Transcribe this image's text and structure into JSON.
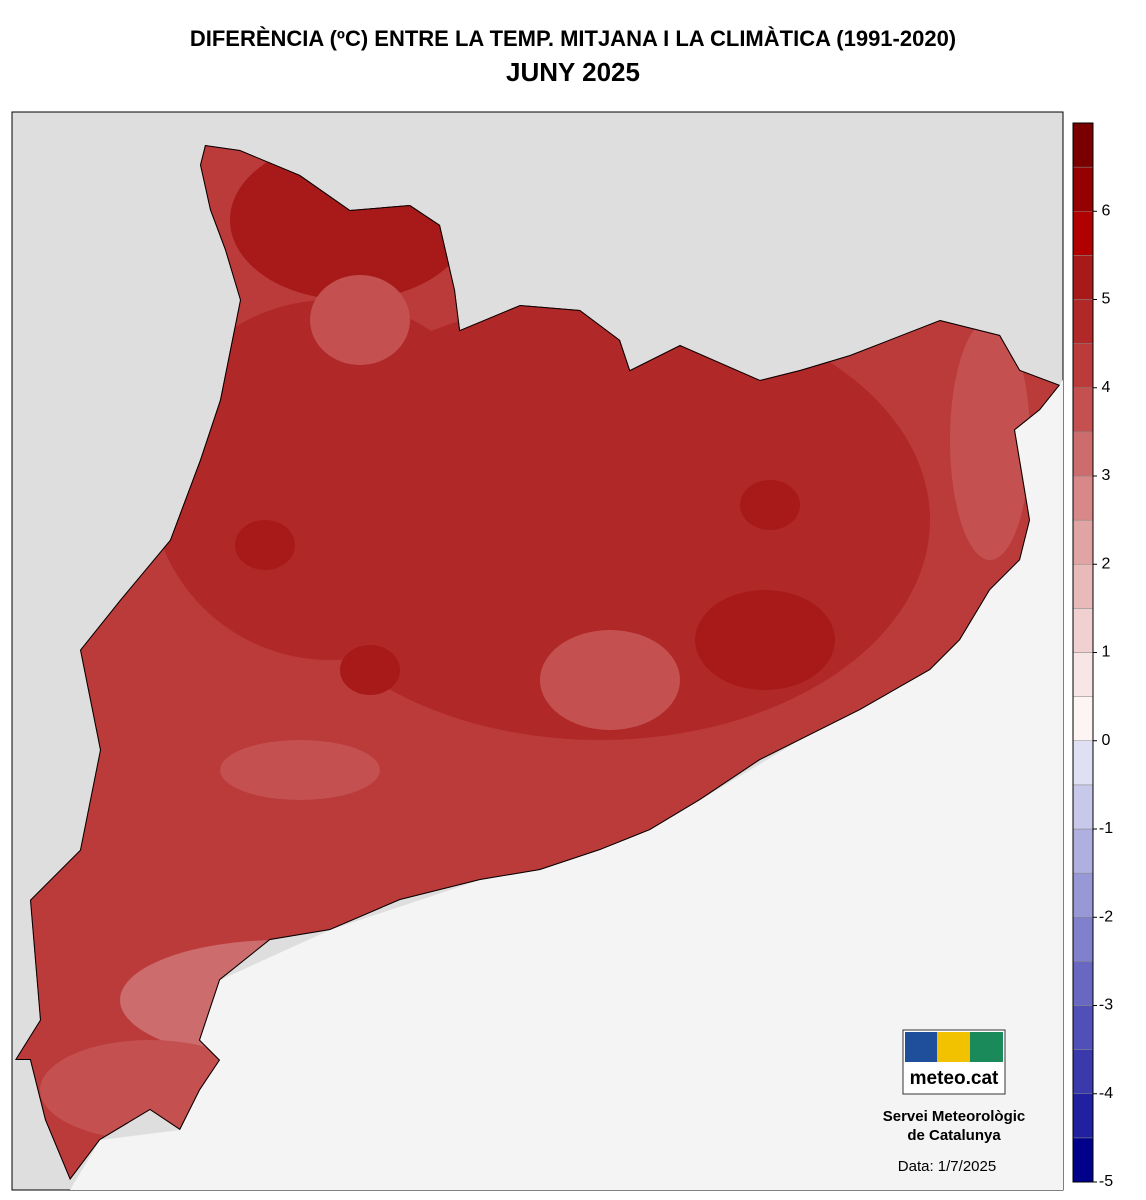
{
  "title": "DIFERÈNCIA (ºC) ENTRE LA TEMP. MITJANA I LA CLIMÀTICA (1991-2020)",
  "subtitle": "JUNY 2025",
  "colorbar": {
    "lim": [
      -5,
      7
    ],
    "ticks": [
      6,
      5,
      4,
      3,
      2,
      1,
      0,
      -1,
      -2,
      -3,
      -4,
      -5
    ],
    "colors": [
      "#00008b",
      "#2020a0",
      "#3a3aac",
      "#5050b8",
      "#6868c2",
      "#8080cc",
      "#9898d6",
      "#b0b0e0",
      "#c8c8ea",
      "#e0e0f4",
      "#fdf4f4",
      "#f8e6e6",
      "#f0d0d0",
      "#e8baba",
      "#e0a4a4",
      "#d88888",
      "#cc6c6c",
      "#c45050",
      "#bb3a3a",
      "#b02828",
      "#a81a1a",
      "#b00000",
      "#950000",
      "#7a0000"
    ]
  },
  "logo": {
    "text": "meteo.cat",
    "org_line1": "Servei Meteorològic",
    "org_line2": "de Catalunya"
  },
  "date": "Data: 1/7/2025"
}
